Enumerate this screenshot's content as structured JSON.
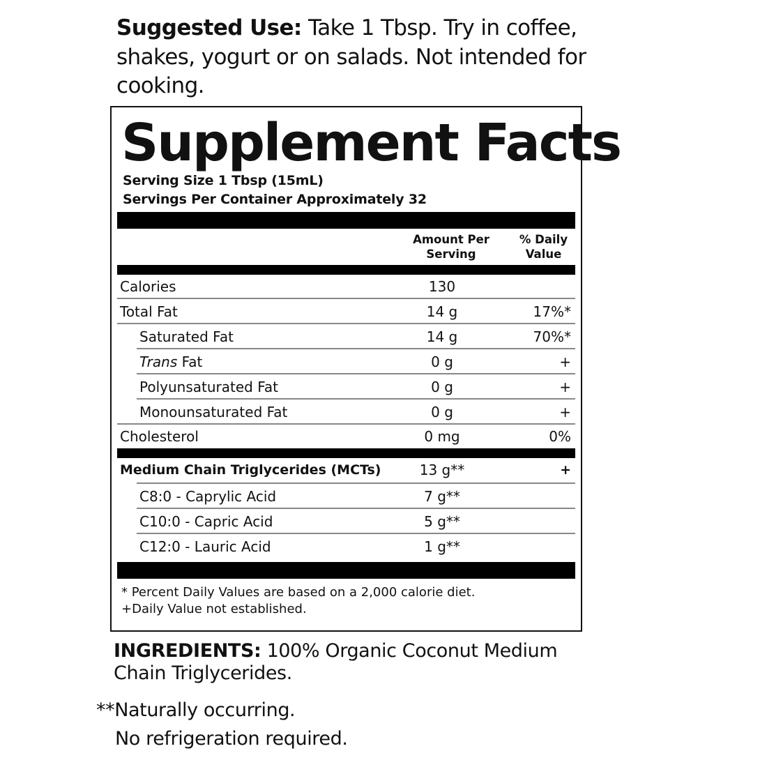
{
  "suggested_use": {
    "label": "Suggested Use:",
    "text": " Take 1 Tbsp. Try in coffee, shakes, yogurt or on salads. Not intended for cooking."
  },
  "facts": {
    "title": "Supplement Facts",
    "serving_size": "Serving Size 1 Tbsp (15mL)",
    "servings_per_container": "Servings Per Container Approximately 32",
    "col_amount": "Amount Per Serving",
    "col_dv": "% Daily Value",
    "rows": [
      {
        "label": "Calories",
        "amount": "130",
        "dv": ""
      },
      {
        "label": "Total Fat",
        "amount": "14 g",
        "dv": "17%*"
      },
      {
        "label": "Saturated Fat",
        "amount": "14 g",
        "dv": "70%*"
      },
      {
        "label": "Trans",
        "label_suffix": " Fat",
        "amount": "0 g",
        "dv": "+"
      },
      {
        "label": "Polyunsaturated Fat",
        "amount": "0 g",
        "dv": "+"
      },
      {
        "label": "Monounsaturated Fat",
        "amount": "0 g",
        "dv": "+"
      },
      {
        "label": "Cholesterol",
        "amount": "0 mg",
        "dv": "0%"
      },
      {
        "label": "Medium Chain Triglycerides (MCTs)",
        "amount": "13 g**",
        "dv": "+"
      },
      {
        "label": "C8:0 - Caprylic Acid",
        "amount": "7 g**",
        "dv": ""
      },
      {
        "label": "C10:0 - Capric Acid",
        "amount": "5 g**",
        "dv": ""
      },
      {
        "label": "C12:0 - Lauric Acid",
        "amount": "1 g**",
        "dv": ""
      }
    ],
    "footnote_1": "* Percent Daily Values are based on a 2,000 calorie diet.",
    "footnote_2": "+Daily Value not established."
  },
  "ingredients": {
    "label": "INGREDIENTS:",
    "text": " 100% Organic Coconut Medium Chain Triglycerides."
  },
  "notes": {
    "naturally": "**Naturally occurring.",
    "refrigeration": "No refrigeration required."
  }
}
